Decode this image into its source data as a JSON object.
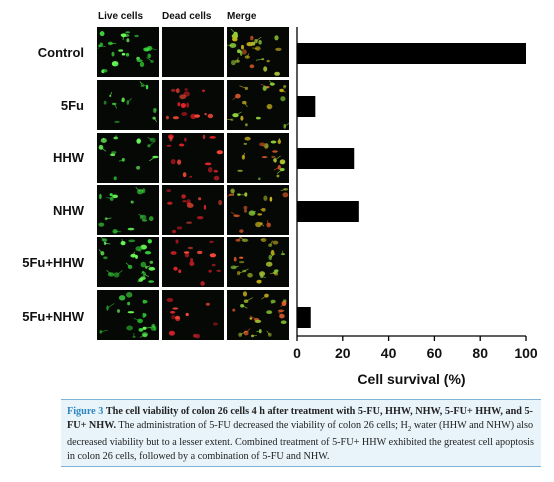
{
  "figure": {
    "column_headers": [
      "Live cells",
      "Dead cells",
      "Merge"
    ],
    "row_labels": [
      "Control",
      "5Fu",
      "HHW",
      "NHW",
      "5Fu+HHW",
      "5Fu+NHW"
    ]
  },
  "chart_data": {
    "type": "bar",
    "orientation": "horizontal",
    "categories": [
      "Control",
      "5Fu",
      "HHW",
      "NHW",
      "5Fu+HHW",
      "5Fu+NHW"
    ],
    "values": [
      100,
      8,
      25,
      27,
      0,
      6
    ],
    "xlabel": "Cell survival (%)",
    "xlim": [
      0,
      100
    ],
    "xticks": [
      "0",
      "20",
      "40",
      "60",
      "80",
      "100"
    ],
    "bar_color": "#000000"
  },
  "caption": {
    "label": "Figure 3",
    "title": "The cell viability of colon 26 cells 4 h after treatment with 5-FU, HHW, NHW, 5-FU+ HHW, and 5-FU+ NHW.",
    "text_1": "The administration of 5-FU decreased the viability of colon 26 cells; H",
    "subscript": "2",
    "text_2": "water (HHW and NHW) also decreased viability but to a lesser extent. Combined treatment of 5-FU+ HHW exhibited the greatest cell apoptosis in colon 26 cells, followed by a combination of 5-FU and NHW."
  },
  "colors": {
    "figure_label": "#2e86c1",
    "caption_background": "#e8f3fa",
    "caption_border": "#7fb3d5",
    "live_stain": "#39d43a",
    "dead_stain": "#e0202a",
    "merge_stain": "#c9b21c"
  }
}
